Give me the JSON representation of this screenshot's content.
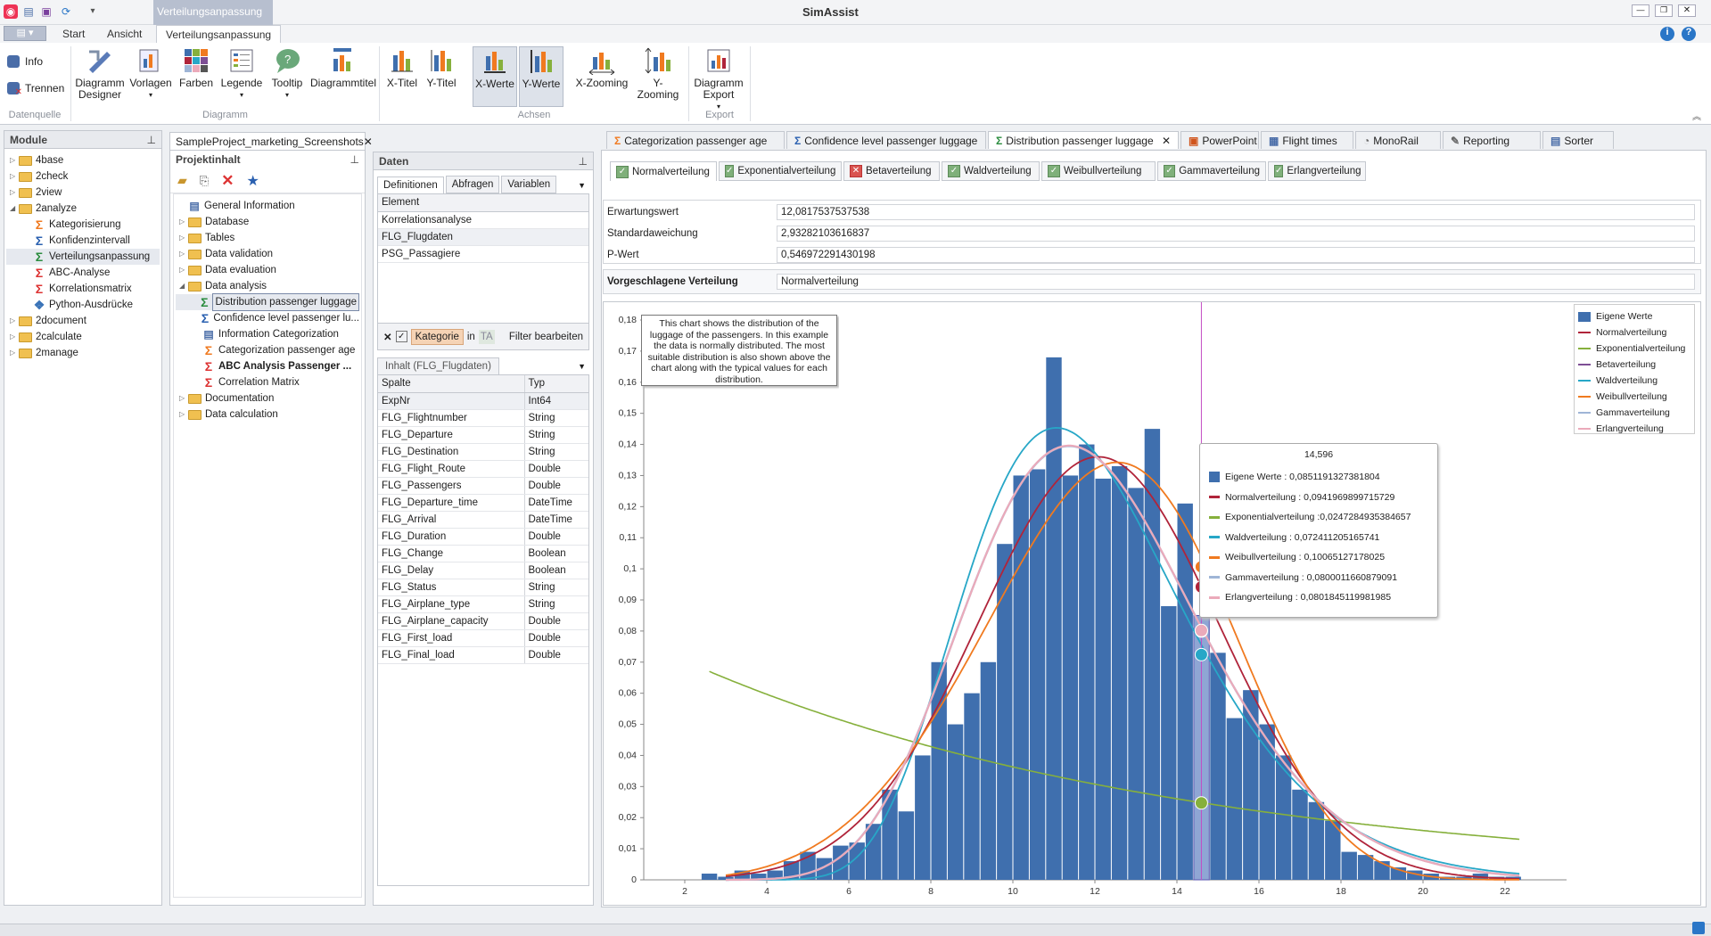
{
  "app_title": "SimAssist",
  "context_tab": "Verteilungsanpassung",
  "ribbon_tabs": [
    "Start",
    "Ansicht",
    "Verteilungsanpassung"
  ],
  "ribbon": {
    "datenquelle": {
      "label": "Datenquelle",
      "info": "Info",
      "trennen": "Trennen"
    },
    "diagramm": {
      "label": "Diagramm",
      "buttons": [
        "Diagramm Designer",
        "Vorlagen",
        "Farben",
        "Legende",
        "Tooltip",
        "Diagrammtitel"
      ]
    },
    "achsen": {
      "label": "Achsen",
      "buttons": [
        "X-Titel",
        "Y-Titel",
        "X-Werte",
        "Y-Werte",
        "X-Zooming",
        "Y-Zooming"
      ]
    },
    "export": {
      "label": "Export",
      "buttons": [
        "Diagramm Export"
      ]
    }
  },
  "module_panel": {
    "title": "Module",
    "items": [
      {
        "label": "4base",
        "level": 0,
        "type": "folder"
      },
      {
        "label": "2check",
        "level": 0,
        "type": "folder"
      },
      {
        "label": "2view",
        "level": 0,
        "type": "folder"
      },
      {
        "label": "2analyze",
        "level": 0,
        "type": "folder"
      },
      {
        "label": "Kategorisierung",
        "level": 1,
        "type": "sigma-orange"
      },
      {
        "label": "Konfidenzintervall",
        "level": 1,
        "type": "sigma-blue"
      },
      {
        "label": "Verteilungsanpassung",
        "level": 1,
        "type": "sigma-green"
      },
      {
        "label": "ABC-Analyse",
        "level": 1,
        "type": "sigma-red"
      },
      {
        "label": "Korrelationsmatrix",
        "level": 1,
        "type": "sigma-red"
      },
      {
        "label": "Python-Ausdrücke",
        "level": 1,
        "type": "python"
      },
      {
        "label": "2document",
        "level": 0,
        "type": "folder"
      },
      {
        "label": "2calculate",
        "level": 0,
        "type": "folder"
      },
      {
        "label": "2manage",
        "level": 0,
        "type": "folder"
      }
    ]
  },
  "project_tab": "SampleProject_marketing_Screenshots",
  "project_panel": {
    "title": "Projektinhalt",
    "items": [
      {
        "label": "General Information",
        "level": 0,
        "type": "doc"
      },
      {
        "label": "Database",
        "level": 0,
        "type": "folder"
      },
      {
        "label": "Tables",
        "level": 0,
        "type": "folder"
      },
      {
        "label": "Data validation",
        "level": 0,
        "type": "folder"
      },
      {
        "label": "Data evaluation",
        "level": 0,
        "type": "folder"
      },
      {
        "label": "Data analysis",
        "level": 0,
        "type": "folder"
      },
      {
        "label": "Distribution passenger luggage",
        "level": 1,
        "type": "sigma-green"
      },
      {
        "label": "Confidence level passenger lu...",
        "level": 1,
        "type": "sigma-blue"
      },
      {
        "label": "Information Categorization",
        "level": 1,
        "type": "doc"
      },
      {
        "label": "Categorization passenger age",
        "level": 1,
        "type": "sigma-orange"
      },
      {
        "label": "ABC Analysis Passenger ...",
        "level": 1,
        "type": "sigma-red"
      },
      {
        "label": "Correlation Matrix",
        "level": 1,
        "type": "sigma-red"
      },
      {
        "label": "Documentation",
        "level": 0,
        "type": "folder"
      },
      {
        "label": "Data calculation",
        "level": 0,
        "type": "folder"
      }
    ]
  },
  "daten_panel": {
    "title": "Daten",
    "tabs": [
      "Definitionen",
      "Abfragen",
      "Variablen"
    ],
    "element_header": "Element",
    "elements": [
      "Korrelationsanalyse",
      "FLG_Flugdaten",
      "PSG_Passagiere"
    ],
    "filter": {
      "kategorie": "Kategorie",
      "in": "in",
      "ta": "TA",
      "edit": "Filter bearbeiten"
    },
    "inhalt_tab": "Inhalt (FLG_Flugdaten)",
    "columns_header": [
      "Spalte",
      "Typ"
    ],
    "columns": [
      [
        "ExpNr",
        "Int64"
      ],
      [
        "FLG_Flightnumber",
        "String"
      ],
      [
        "FLG_Departure",
        "String"
      ],
      [
        "FLG_Destination",
        "String"
      ],
      [
        "FLG_Flight_Route",
        "Double"
      ],
      [
        "FLG_Passengers",
        "Double"
      ],
      [
        "FLG_Departure_time",
        "DateTime"
      ],
      [
        "FLG_Arrival",
        "DateTime"
      ],
      [
        "FLG_Duration",
        "Double"
      ],
      [
        "FLG_Change",
        "Boolean"
      ],
      [
        "FLG_Delay",
        "Boolean"
      ],
      [
        "FLG_Status",
        "String"
      ],
      [
        "FLG_Airplane_type",
        "String"
      ],
      [
        "FLG_Airplane_capacity",
        "Double"
      ],
      [
        "FLG_First_load",
        "Double"
      ],
      [
        "FLG_Final_load",
        "Double"
      ]
    ]
  },
  "doc_tabs": [
    "Categorization passenger age",
    "Confidence level passenger luggage",
    "Distribution passenger luggage",
    "PowerPoint",
    "Flight times",
    "MonoRail",
    "Reporting",
    "Sorter"
  ],
  "dist_tabs": [
    {
      "label": "Normalverteilung",
      "checked": true
    },
    {
      "label": "Exponentialverteilung",
      "checked": true
    },
    {
      "label": "Betaverteilung",
      "checked": false
    },
    {
      "label": "Waldverteilung",
      "checked": true
    },
    {
      "label": "Weibullverteilung",
      "checked": true
    },
    {
      "label": "Gammaverteilung",
      "checked": true
    },
    {
      "label": "Erlangverteilung",
      "checked": true
    }
  ],
  "stats": [
    {
      "label": "Erwartungswert",
      "value": "12,0817537537538"
    },
    {
      "label": "Standardaweichung",
      "value": "2,93282103616837"
    },
    {
      "label": "P-Wert",
      "value": "0,546972291430198"
    }
  ],
  "suggested": {
    "label": "Vorgeschlagene Verteilung",
    "value": "Normalverteilung"
  },
  "chart_note": "This chart shows the distribution of the luggage of the passengers. In this example the data is normally distributed. The most suitable distribution is also shown above the chart along with the typical values for each distribution.",
  "colors": {
    "bars": "#3f6fae",
    "normal": "#b0243a",
    "exponential": "#86b03c",
    "beta": "#7e4f95",
    "wald": "#27a7c7",
    "weibull": "#f07a20",
    "gamma": "#9fb5d6",
    "erlang": "#ebaaba",
    "cursor": "#c34bc3"
  },
  "chart_data": {
    "type": "bar",
    "x_ticks": [
      2,
      4,
      6,
      8,
      10,
      12,
      14,
      16,
      18,
      20,
      22
    ],
    "y_ticks": [
      "0",
      "0,01",
      "0,02",
      "0,03",
      "0,04",
      "0,05",
      "0,06",
      "0,07",
      "0,08",
      "0,09",
      "0,1",
      "0,11",
      "0,12",
      "0,13",
      "0,14",
      "0,15",
      "0,16",
      "0,17",
      "0,18"
    ],
    "xlim": [
      1,
      23.5
    ],
    "ylim": [
      0,
      0.18
    ],
    "bar_x": [
      2.6,
      3.0,
      3.4,
      3.8,
      4.2,
      4.6,
      5.0,
      5.4,
      5.8,
      6.2,
      6.6,
      7.0,
      7.4,
      7.8,
      8.2,
      8.6,
      9.0,
      9.4,
      9.8,
      10.2,
      10.6,
      11.0,
      11.4,
      11.8,
      12.2,
      12.6,
      13.0,
      13.4,
      13.8,
      14.2,
      14.6,
      15.0,
      15.4,
      15.8,
      16.2,
      16.6,
      17.0,
      17.4,
      17.8,
      18.2,
      18.6,
      19.0,
      19.4,
      19.8,
      20.2,
      20.6,
      21.0,
      21.4,
      21.8,
      22.2
    ],
    "bar_values": [
      0.002,
      0.001,
      0.003,
      0.002,
      0.003,
      0.006,
      0.009,
      0.007,
      0.011,
      0.012,
      0.018,
      0.029,
      0.022,
      0.04,
      0.07,
      0.05,
      0.06,
      0.07,
      0.108,
      0.13,
      0.132,
      0.168,
      0.13,
      0.14,
      0.129,
      0.133,
      0.126,
      0.145,
      0.088,
      0.121,
      0.085,
      0.073,
      0.052,
      0.061,
      0.05,
      0.04,
      0.029,
      0.025,
      0.019,
      0.009,
      0.008,
      0.006,
      0.004,
      0.003,
      0.002,
      0.001,
      0.001,
      0.002,
      0.001,
      0.001
    ],
    "series": [
      {
        "name": "Eigene Werte",
        "color": "#3f6fae"
      },
      {
        "name": "Normalverteilung",
        "color": "#b0243a"
      },
      {
        "name": "Exponentialverteilung",
        "color": "#86b03c"
      },
      {
        "name": "Betaverteilung",
        "color": "#7e4f95"
      },
      {
        "name": "Waldverteilung",
        "color": "#27a7c7"
      },
      {
        "name": "Weibullverteilung",
        "color": "#f07a20"
      },
      {
        "name": "Gammaverteilung",
        "color": "#9fb5d6"
      },
      {
        "name": "Erlangverteilung",
        "color": "#ebaaba"
      }
    ],
    "exp_curve": {
      "x": [
        2.6,
        22.4
      ],
      "y_start": 0.067,
      "y_end": 0.013
    },
    "cursor_x": 14.596,
    "tooltip": {
      "title": "14,596",
      "rows": [
        {
          "name": "Eigene Werte",
          "value": "0,0851191327381804",
          "text": "Eigene Werte : 0,0851191327381804"
        },
        {
          "name": "Normalverteilung",
          "value": "0,0941969899715729",
          "text": "Normalverteilung : 0,0941969899715729"
        },
        {
          "name": "Exponentialverteilung",
          "value": "0,0247284935384657",
          "text": "Exponentialverteilung :0,0247284935384657"
        },
        {
          "name": "Waldverteilung",
          "value": "0,072411205165741",
          "text": "Waldverteilung : 0,072411205165741"
        },
        {
          "name": "Weibullverteilung",
          "value": "0,10065127178025",
          "text": "Weibullverteilung : 0,10065127178025"
        },
        {
          "name": "Gammaverteilung",
          "value": "0,0800011660879091",
          "text": "Gammaverteilung : 0,0800011660879091"
        },
        {
          "name": "Erlangverteilung",
          "value": "0,0801845119981985",
          "text": "Erlangverteilung : 0,0801845119981985"
        }
      ]
    },
    "legend_position": "top-right"
  }
}
